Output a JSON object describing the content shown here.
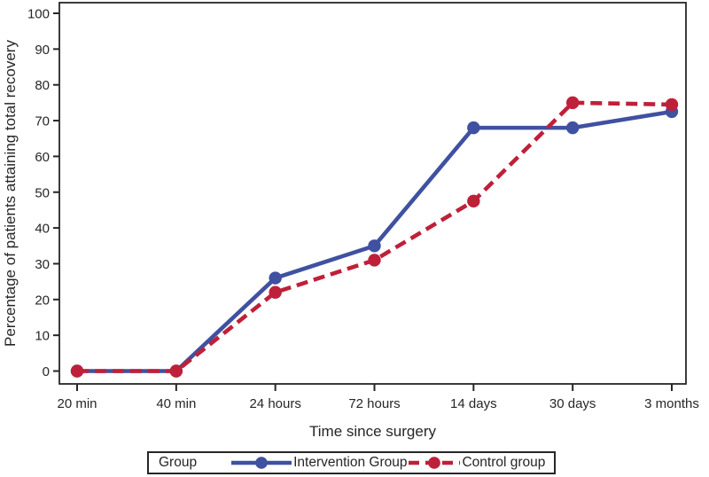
{
  "colors": {
    "axis": "#262626",
    "background": "#ffffff",
    "intervention_blue": "#3f51a0",
    "control_red": "#bf2039"
  },
  "chart_data": {
    "type": "line",
    "title": "",
    "xlabel": "Time since surgery",
    "ylabel": "Percentage of patients attaining total recovery",
    "categories": [
      "20 min",
      "40 min",
      "24 hours",
      "72 hours",
      "14 days",
      "30 days",
      "3 months"
    ],
    "series": [
      {
        "name": "Intervention Group",
        "values": [
          0,
          0,
          26,
          35,
          68,
          68,
          72.5
        ],
        "color": "#3f51a0",
        "style": "solid",
        "marker": "circle"
      },
      {
        "name": "Control group",
        "values": [
          0,
          0,
          22,
          31,
          47.5,
          75,
          74.5
        ],
        "color": "#bf2039",
        "style": "dashed",
        "marker": "circle"
      }
    ],
    "ylim": [
      0,
      100
    ],
    "ytick_step": 10,
    "grid": false,
    "legend": {
      "position": "bottom",
      "title": "Group"
    }
  }
}
